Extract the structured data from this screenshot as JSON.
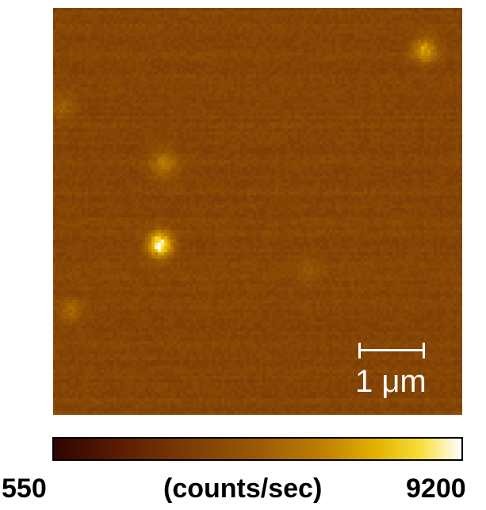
{
  "image": {
    "scale_bar_label": "1 μm",
    "colorbar": {
      "min_label": "550",
      "max_label": "9200",
      "unit_label": "(counts/sec)"
    },
    "colors": {
      "background": "#7a3f0e",
      "bright_spot": "#f5d020",
      "colormap_low": "#2e0500",
      "colormap_high": "#ffffff"
    }
  }
}
